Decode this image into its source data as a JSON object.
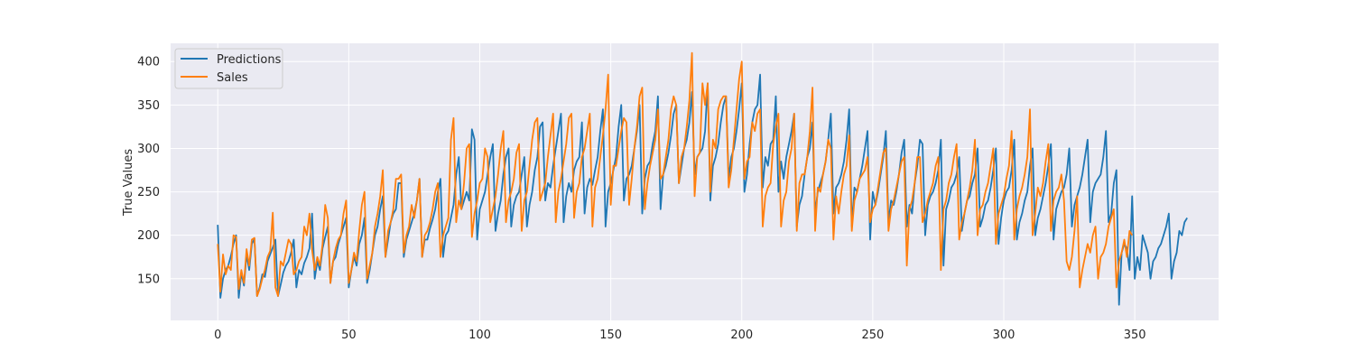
{
  "chart_data": {
    "type": "line",
    "title": "",
    "xlabel": "",
    "ylabel": "True Values",
    "xlim": [
      -18,
      382
    ],
    "ylim": [
      102,
      421
    ],
    "xticks": [
      0,
      50,
      100,
      150,
      200,
      250,
      300,
      350
    ],
    "yticks": [
      150,
      200,
      250,
      300,
      350,
      400
    ],
    "grid": true,
    "legend_position": "top-left",
    "series": [
      {
        "name": "Predictions",
        "color": "#1f77b4",
        "x_start": 0,
        "values": [
          212,
          128,
          150,
          160,
          165,
          176,
          190,
          200,
          128,
          157,
          142,
          178,
          160,
          190,
          196,
          130,
          140,
          155,
          152,
          170,
          178,
          186,
          195,
          130,
          143,
          157,
          165,
          170,
          180,
          195,
          140,
          160,
          155,
          168,
          175,
          185,
          225,
          150,
          170,
          160,
          185,
          198,
          210,
          145,
          170,
          175,
          190,
          200,
          210,
          220,
          140,
          160,
          175,
          165,
          190,
          200,
          220,
          145,
          160,
          180,
          200,
          210,
          230,
          245,
          175,
          195,
          215,
          225,
          230,
          260,
          260,
          175,
          195,
          205,
          215,
          225,
          240,
          265,
          175,
          195,
          195,
          208,
          218,
          230,
          250,
          265,
          175,
          200,
          205,
          220,
          235,
          270,
          290,
          230,
          240,
          250,
          240,
          322,
          310,
          195,
          230,
          240,
          250,
          270,
          290,
          305,
          205,
          225,
          240,
          270,
          290,
          300,
          210,
          235,
          245,
          250,
          270,
          290,
          210,
          235,
          250,
          275,
          290,
          325,
          330,
          240,
          260,
          255,
          280,
          300,
          320,
          340,
          215,
          245,
          260,
          250,
          275,
          285,
          290,
          330,
          225,
          255,
          265,
          258,
          275,
          290,
          320,
          345,
          210,
          250,
          260,
          275,
          290,
          325,
          350,
          240,
          265,
          270,
          280,
          300,
          320,
          350,
          225,
          265,
          280,
          285,
          305,
          320,
          360,
          230,
          270,
          280,
          295,
          315,
          340,
          350,
          260,
          280,
          300,
          310,
          330,
          365,
          270,
          290,
          295,
          300,
          320,
          375,
          240,
          280,
          290,
          305,
          330,
          350,
          360,
          265,
          290,
          300,
          320,
          345,
          375,
          250,
          270,
          305,
          330,
          345,
          350,
          385,
          255,
          290,
          280,
          305,
          310,
          360,
          250,
          285,
          265,
          290,
          305,
          320,
          340,
          210,
          235,
          245,
          270,
          290,
          300,
          330,
          225,
          250,
          260,
          270,
          285,
          310,
          340,
          225,
          255,
          260,
          270,
          285,
          310,
          345,
          210,
          255,
          250,
          265,
          280,
          300,
          320,
          195,
          250,
          235,
          250,
          270,
          290,
          320,
          215,
          240,
          235,
          250,
          270,
          295,
          310,
          210,
          235,
          225,
          260,
          280,
          310,
          305,
          200,
          235,
          245,
          250,
          260,
          275,
          310,
          165,
          230,
          240,
          255,
          260,
          270,
          290,
          205,
          225,
          240,
          245,
          260,
          270,
          300,
          210,
          220,
          235,
          240,
          255,
          275,
          300,
          190,
          220,
          240,
          250,
          255,
          275,
          310,
          195,
          215,
          225,
          240,
          250,
          280,
          300,
          200,
          220,
          230,
          245,
          260,
          280,
          305,
          195,
          230,
          240,
          250,
          255,
          270,
          300,
          210,
          235,
          245,
          255,
          270,
          290,
          310,
          215,
          250,
          260,
          265,
          270,
          290,
          320,
          215,
          225,
          260,
          275,
          120,
          180,
          190,
          185,
          160,
          245,
          150,
          175,
          160,
          200,
          190,
          180,
          150,
          170,
          175,
          185,
          190,
          200,
          210,
          225,
          150,
          170,
          180,
          205,
          200,
          215,
          220
        ],
        "values_note": "estimated"
      },
      {
        "name": "Sales",
        "color": "#ff7f0e",
        "x_start": 0,
        "values": [
          190,
          135,
          178,
          155,
          165,
          160,
          200,
          198,
          138,
          160,
          145,
          184,
          165,
          195,
          197,
          130,
          138,
          150,
          160,
          175,
          182,
          226,
          140,
          130,
          170,
          165,
          180,
          195,
          190,
          155,
          160,
          170,
          175,
          210,
          200,
          225,
          183,
          160,
          175,
          165,
          190,
          235,
          220,
          145,
          170,
          185,
          195,
          200,
          225,
          240,
          145,
          160,
          180,
          170,
          205,
          235,
          250,
          150,
          165,
          180,
          210,
          225,
          245,
          275,
          175,
          205,
          215,
          230,
          265,
          265,
          270,
          180,
          200,
          210,
          235,
          220,
          240,
          265,
          175,
          200,
          205,
          215,
          230,
          250,
          260,
          175,
          200,
          210,
          220,
          310,
          335,
          215,
          240,
          230,
          260,
          300,
          305,
          198,
          225,
          240,
          260,
          265,
          300,
          290,
          215,
          230,
          245,
          270,
          300,
          320,
          215,
          240,
          250,
          265,
          295,
          305,
          205,
          240,
          250,
          280,
          310,
          330,
          335,
          240,
          250,
          260,
          290,
          315,
          340,
          215,
          250,
          265,
          285,
          305,
          335,
          340,
          220,
          250,
          260,
          290,
          300,
          320,
          340,
          210,
          255,
          265,
          290,
          315,
          345,
          385,
          235,
          280,
          280,
          300,
          320,
          335,
          330,
          235,
          265,
          300,
          325,
          360,
          370,
          230,
          260,
          280,
          295,
          310,
          345,
          265,
          270,
          290,
          310,
          345,
          360,
          350,
          260,
          290,
          300,
          325,
          355,
          410,
          245,
          290,
          295,
          375,
          350,
          375,
          250,
          310,
          300,
          345,
          355,
          360,
          360,
          255,
          275,
          310,
          345,
          380,
          400,
          265,
          285,
          290,
          330,
          320,
          340,
          345,
          210,
          245,
          255,
          260,
          305,
          325,
          340,
          210,
          240,
          250,
          285,
          300,
          340,
          205,
          260,
          270,
          270,
          290,
          320,
          370,
          205,
          255,
          250,
          270,
          285,
          310,
          300,
          195,
          245,
          225,
          250,
          270,
          280,
          315,
          205,
          240,
          250,
          265,
          270,
          275,
          290,
          215,
          230,
          235,
          255,
          275,
          295,
          300,
          205,
          230,
          240,
          255,
          270,
          285,
          290,
          165,
          230,
          240,
          260,
          290,
          290,
          215,
          225,
          240,
          250,
          260,
          280,
          290,
          160,
          230,
          240,
          260,
          270,
          290,
          305,
          195,
          215,
          225,
          240,
          255,
          275,
          310,
          200,
          230,
          235,
          250,
          260,
          280,
          300,
          190,
          225,
          235,
          245,
          265,
          280,
          320,
          195,
          230,
          245,
          255,
          270,
          290,
          345,
          200,
          225,
          255,
          245,
          260,
          285,
          305,
          205,
          240,
          250,
          255,
          270,
          240,
          170,
          160,
          175,
          205,
          245,
          140,
          160,
          175,
          190,
          180,
          200,
          210,
          150,
          175,
          180,
          190,
          210,
          220,
          230,
          140,
          170,
          180,
          195,
          175,
          205,
          200
        ]
      }
    ]
  }
}
